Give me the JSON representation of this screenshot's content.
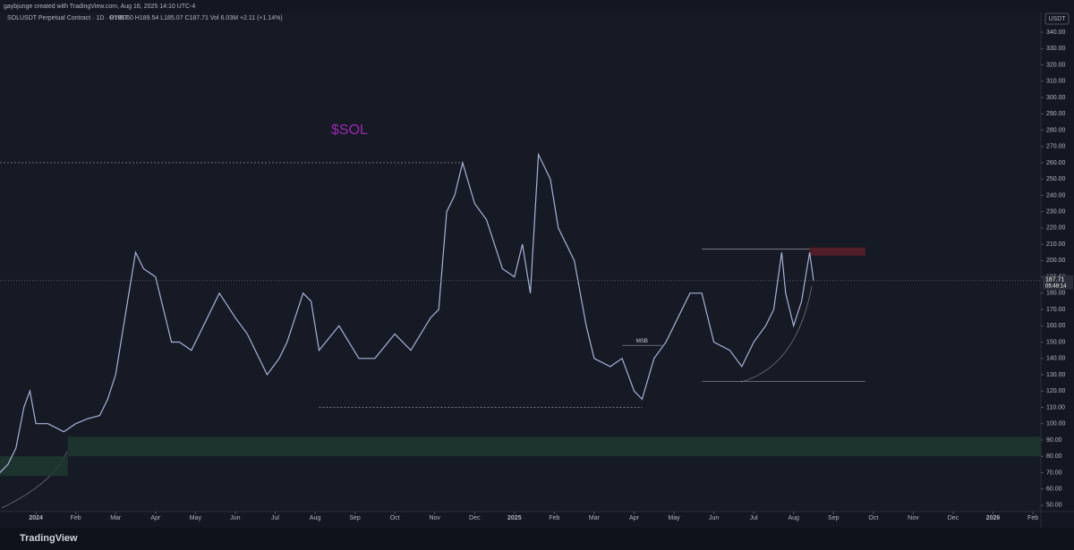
{
  "header": {
    "credit": "gaybjunge created with TradingView.com, Aug 16, 2025 14:10 UTC-4",
    "symbol": "SOLUSDT Perpetual Contract · 1D · BYBIT",
    "ohlc": "O185.60 H189.54 L185.07 C187.71 Vol 6.03M +2.11 (+1.14%)"
  },
  "footer": {
    "brand": "TradingView"
  },
  "chart_data": {
    "type": "line",
    "currency": "USDT",
    "annotation": "$SOL",
    "msb_label": "MSB",
    "countdown": "05:49:14",
    "last_price": 187.71,
    "x": [
      -0.9,
      -0.7,
      -0.5,
      -0.3,
      -0.15,
      0,
      0.3,
      0.7,
      1,
      1.3,
      1.6,
      1.8,
      2,
      2.2,
      2.4,
      2.5,
      2.7,
      3,
      3.2,
      3.4,
      3.6,
      3.9,
      4.2,
      4.6,
      5,
      5.3,
      5.6,
      5.8,
      6.1,
      6.3,
      6.5,
      6.7,
      6.9,
      7.1,
      7.6,
      8.1,
      8.5,
      9,
      9.4,
      9.9,
      10.1,
      10.3,
      10.5,
      10.7,
      11,
      11.3,
      11.7,
      12,
      12.2,
      12.4,
      12.6,
      12.9,
      13.1,
      13.5,
      13.8,
      14,
      14.4,
      14.7,
      15,
      15.2,
      15.5,
      15.8,
      16.1,
      16.4,
      16.7,
      17,
      17.4,
      17.7,
      18,
      18.3,
      18.5,
      18.7,
      18.8,
      19,
      19.2,
      19.4,
      19.5
    ],
    "values": [
      70,
      75,
      85,
      110,
      120,
      100,
      100,
      95,
      100,
      103,
      105,
      115,
      130,
      160,
      190,
      205,
      195,
      190,
      170,
      150,
      150,
      145,
      160,
      180,
      165,
      155,
      140,
      130,
      140,
      150,
      165,
      180,
      175,
      145,
      160,
      140,
      140,
      155,
      145,
      165,
      170,
      230,
      240,
      260,
      235,
      225,
      195,
      190,
      210,
      180,
      265,
      250,
      220,
      200,
      160,
      140,
      135,
      140,
      120,
      115,
      140,
      150,
      165,
      180,
      180,
      150,
      145,
      135,
      150,
      160,
      170,
      205,
      180,
      160,
      175,
      205,
      187.71
    ],
    "color": "#a9b2d6",
    "zones": [
      {
        "y": [
          80,
          92
        ],
        "x": [
          0.8,
          25.2
        ],
        "color": "#1f3a30"
      },
      {
        "y": [
          68,
          80
        ],
        "x": [
          -0.9,
          0.8
        ],
        "color": "#1f3a30"
      },
      {
        "y": [
          203,
          208
        ],
        "x": [
          19.4,
          20.8
        ],
        "color": "#5a1e2a"
      }
    ],
    "levels": [
      {
        "y": 260,
        "x": [
          -0.9,
          10.7
        ]
      },
      {
        "y": 110,
        "x": [
          7.1,
          15.2
        ]
      },
      {
        "y": 207,
        "x": [
          16.7,
          19.4
        ]
      },
      {
        "y": 126,
        "x": [
          16.7,
          20.8
        ]
      },
      {
        "y": 148,
        "x": [
          14.7,
          15.7
        ]
      }
    ],
    "xlim": [
      -0.9,
      25.2
    ],
    "ylim": [
      46.1,
      352.1
    ],
    "xticks": [
      {
        "value": 0,
        "label": "2024"
      },
      {
        "value": 1,
        "label": "Feb"
      },
      {
        "value": 2,
        "label": "Mar"
      },
      {
        "value": 3,
        "label": "Apr"
      },
      {
        "value": 4,
        "label": "May"
      },
      {
        "value": 5,
        "label": "Jun"
      },
      {
        "value": 6,
        "label": "Jul"
      },
      {
        "value": 7,
        "label": "Aug"
      },
      {
        "value": 8,
        "label": "Sep"
      },
      {
        "value": 9,
        "label": "Oct"
      },
      {
        "value": 10,
        "label": "Nov"
      },
      {
        "value": 11,
        "label": "Dec"
      },
      {
        "value": 12,
        "label": "2025"
      },
      {
        "value": 13,
        "label": "Feb"
      },
      {
        "value": 14,
        "label": "Mar"
      },
      {
        "value": 15,
        "label": "Apr"
      },
      {
        "value": 16,
        "label": "May"
      },
      {
        "value": 17,
        "label": "Jun"
      },
      {
        "value": 18,
        "label": "Jul"
      },
      {
        "value": 19,
        "label": "Aug"
      },
      {
        "value": 20,
        "label": "Sep"
      },
      {
        "value": 21,
        "label": "Oct"
      },
      {
        "value": 22,
        "label": "Nov"
      },
      {
        "value": 23,
        "label": "Dec"
      },
      {
        "value": 24,
        "label": "2026"
      },
      {
        "value": 25,
        "label": "Feb"
      }
    ],
    "yticks": [
      {
        "value": 50,
        "label": "50.00"
      },
      {
        "value": 60,
        "label": "60.00"
      },
      {
        "value": 70,
        "label": "70.00"
      },
      {
        "value": 80,
        "label": "80.00"
      },
      {
        "value": 90,
        "label": "90.00"
      },
      {
        "value": 100,
        "label": "100.00"
      },
      {
        "value": 110,
        "label": "110.00"
      },
      {
        "value": 120,
        "label": "120.00"
      },
      {
        "value": 130,
        "label": "130.00"
      },
      {
        "value": 140,
        "label": "140.00"
      },
      {
        "value": 150,
        "label": "150.00"
      },
      {
        "value": 160,
        "label": "160.00"
      },
      {
        "value": 170,
        "label": "170.00"
      },
      {
        "value": 180,
        "label": "180.00"
      },
      {
        "value": 190,
        "label": "190.00"
      },
      {
        "value": 200,
        "label": "200.00"
      },
      {
        "value": 210,
        "label": "210.00"
      },
      {
        "value": 220,
        "label": "220.00"
      },
      {
        "value": 230,
        "label": "230.00"
      },
      {
        "value": 240,
        "label": "240.00"
      },
      {
        "value": 250,
        "label": "250.00"
      },
      {
        "value": 260,
        "label": "260.00"
      },
      {
        "value": 270,
        "label": "270.00"
      },
      {
        "value": 280,
        "label": "280.00"
      },
      {
        "value": 290,
        "label": "290.00"
      },
      {
        "value": 300,
        "label": "300.00"
      },
      {
        "value": 310,
        "label": "310.00"
      },
      {
        "value": 320,
        "label": "320.00"
      },
      {
        "value": 330,
        "label": "330.00"
      },
      {
        "value": 340,
        "label": "340.00"
      }
    ]
  }
}
